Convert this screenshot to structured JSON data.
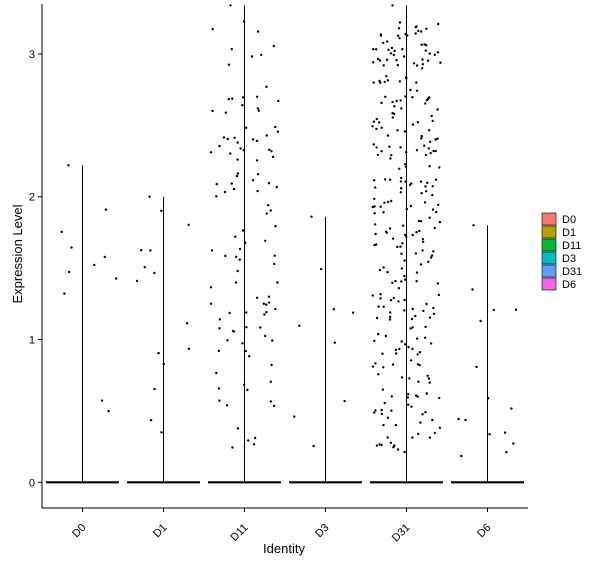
{
  "chart_data": {
    "type": "violin",
    "xlabel": "Identity",
    "ylabel": "Expression Level",
    "categories": [
      "D0",
      "D1",
      "D11",
      "D3",
      "D31",
      "D6"
    ],
    "ylim": [
      -0.18,
      3.35
    ],
    "yticks": [
      0,
      1,
      2,
      3
    ],
    "grid": false,
    "legend_position": "right",
    "series": [
      {
        "name": "D0",
        "color": "#F8766D",
        "max": 2.22
      },
      {
        "name": "D1",
        "color": "#B79F00",
        "max": 2.0
      },
      {
        "name": "D11",
        "color": "#00BA38",
        "max": 3.34
      },
      {
        "name": "D3",
        "color": "#00BFC4",
        "max": 1.86
      },
      {
        "name": "D31",
        "color": "#619CFF",
        "max": 3.34
      },
      {
        "name": "D6",
        "color": "#F564E3",
        "max": 1.8
      }
    ]
  }
}
